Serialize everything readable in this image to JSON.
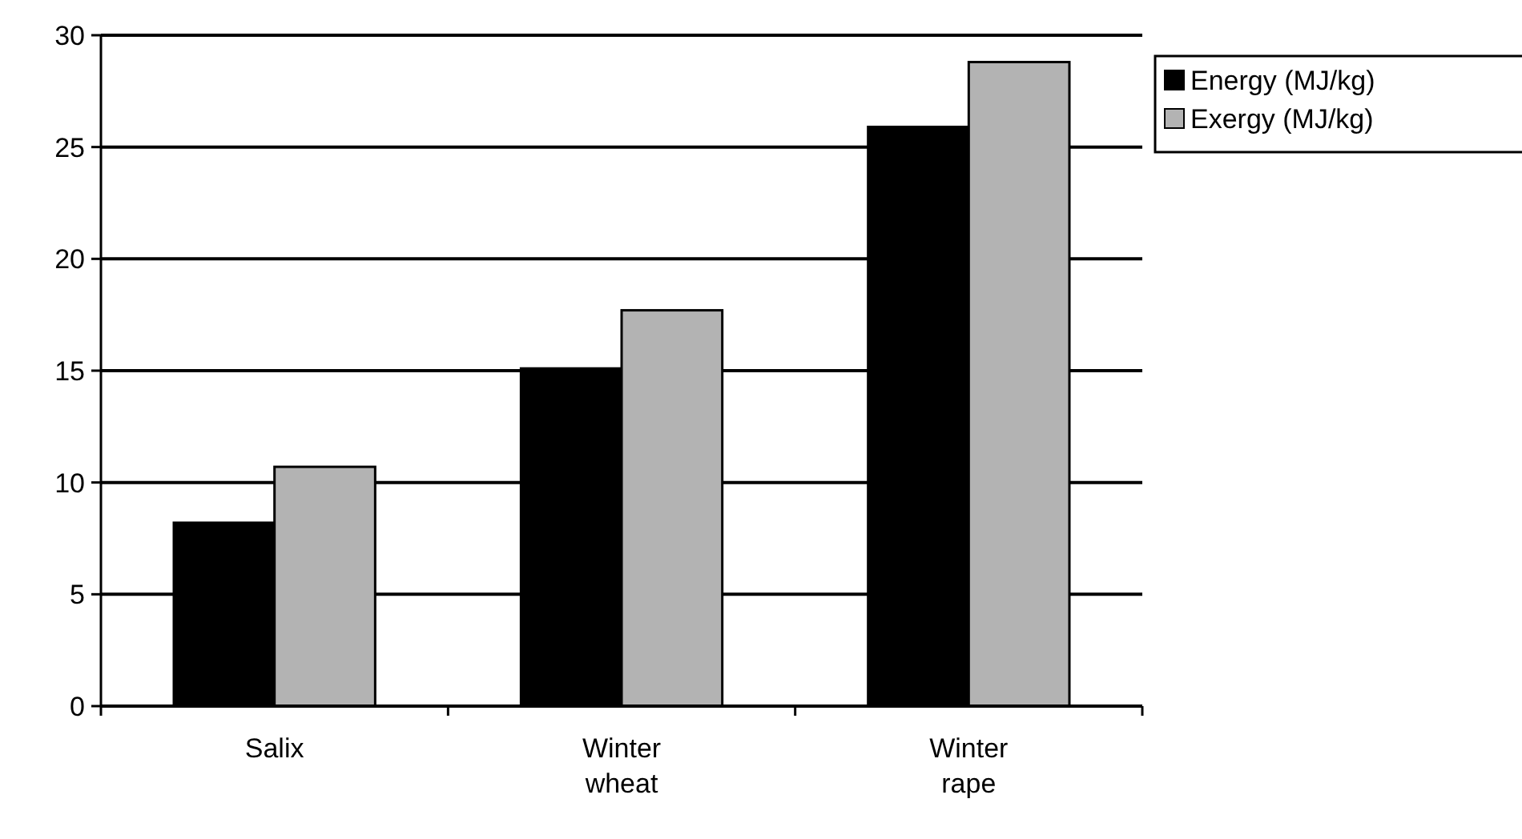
{
  "chart_data": {
    "type": "bar",
    "categories": [
      "Salix",
      "Winter wheat",
      "Winter rape"
    ],
    "series": [
      {
        "name": "Energy (MJ/kg)",
        "color": "#000000",
        "values": [
          8.2,
          15.1,
          25.9
        ]
      },
      {
        "name": "Exergy (MJ/kg)",
        "color": "#b3b3b3",
        "values": [
          10.7,
          17.7,
          28.8
        ]
      }
    ],
    "ylim": [
      0,
      30
    ],
    "yticks": [
      0,
      5,
      10,
      15,
      20,
      25,
      30
    ],
    "grid": "y",
    "legend": "right"
  }
}
